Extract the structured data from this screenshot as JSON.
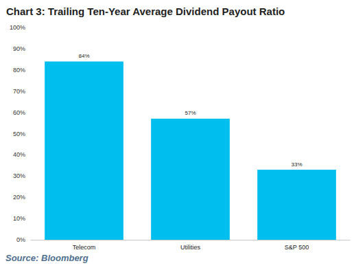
{
  "chart_data": {
    "type": "bar",
    "title": "Chart 3: Trailing Ten-Year Average Dividend Payout Ratio",
    "source": "Source: Bloomberg",
    "categories": [
      "Telecom",
      "Utilities",
      "S&P 500"
    ],
    "values": [
      84,
      57,
      33
    ],
    "value_labels": [
      "84%",
      "57%",
      "33%"
    ],
    "color": "#00bfef",
    "ylim": [
      0,
      100
    ],
    "yticks": [
      {
        "value": 0,
        "label": "0%"
      },
      {
        "value": 10,
        "label": "10%"
      },
      {
        "value": 20,
        "label": "20%"
      },
      {
        "value": 30,
        "label": "30%"
      },
      {
        "value": 40,
        "label": "40%"
      },
      {
        "value": 50,
        "label": "50%"
      },
      {
        "value": 60,
        "label": "60%"
      },
      {
        "value": 70,
        "label": "70%"
      },
      {
        "value": 80,
        "label": "80%"
      },
      {
        "value": 90,
        "label": "90%"
      },
      {
        "value": 100,
        "label": "100%"
      }
    ],
    "grid": false,
    "data_labels": true
  }
}
